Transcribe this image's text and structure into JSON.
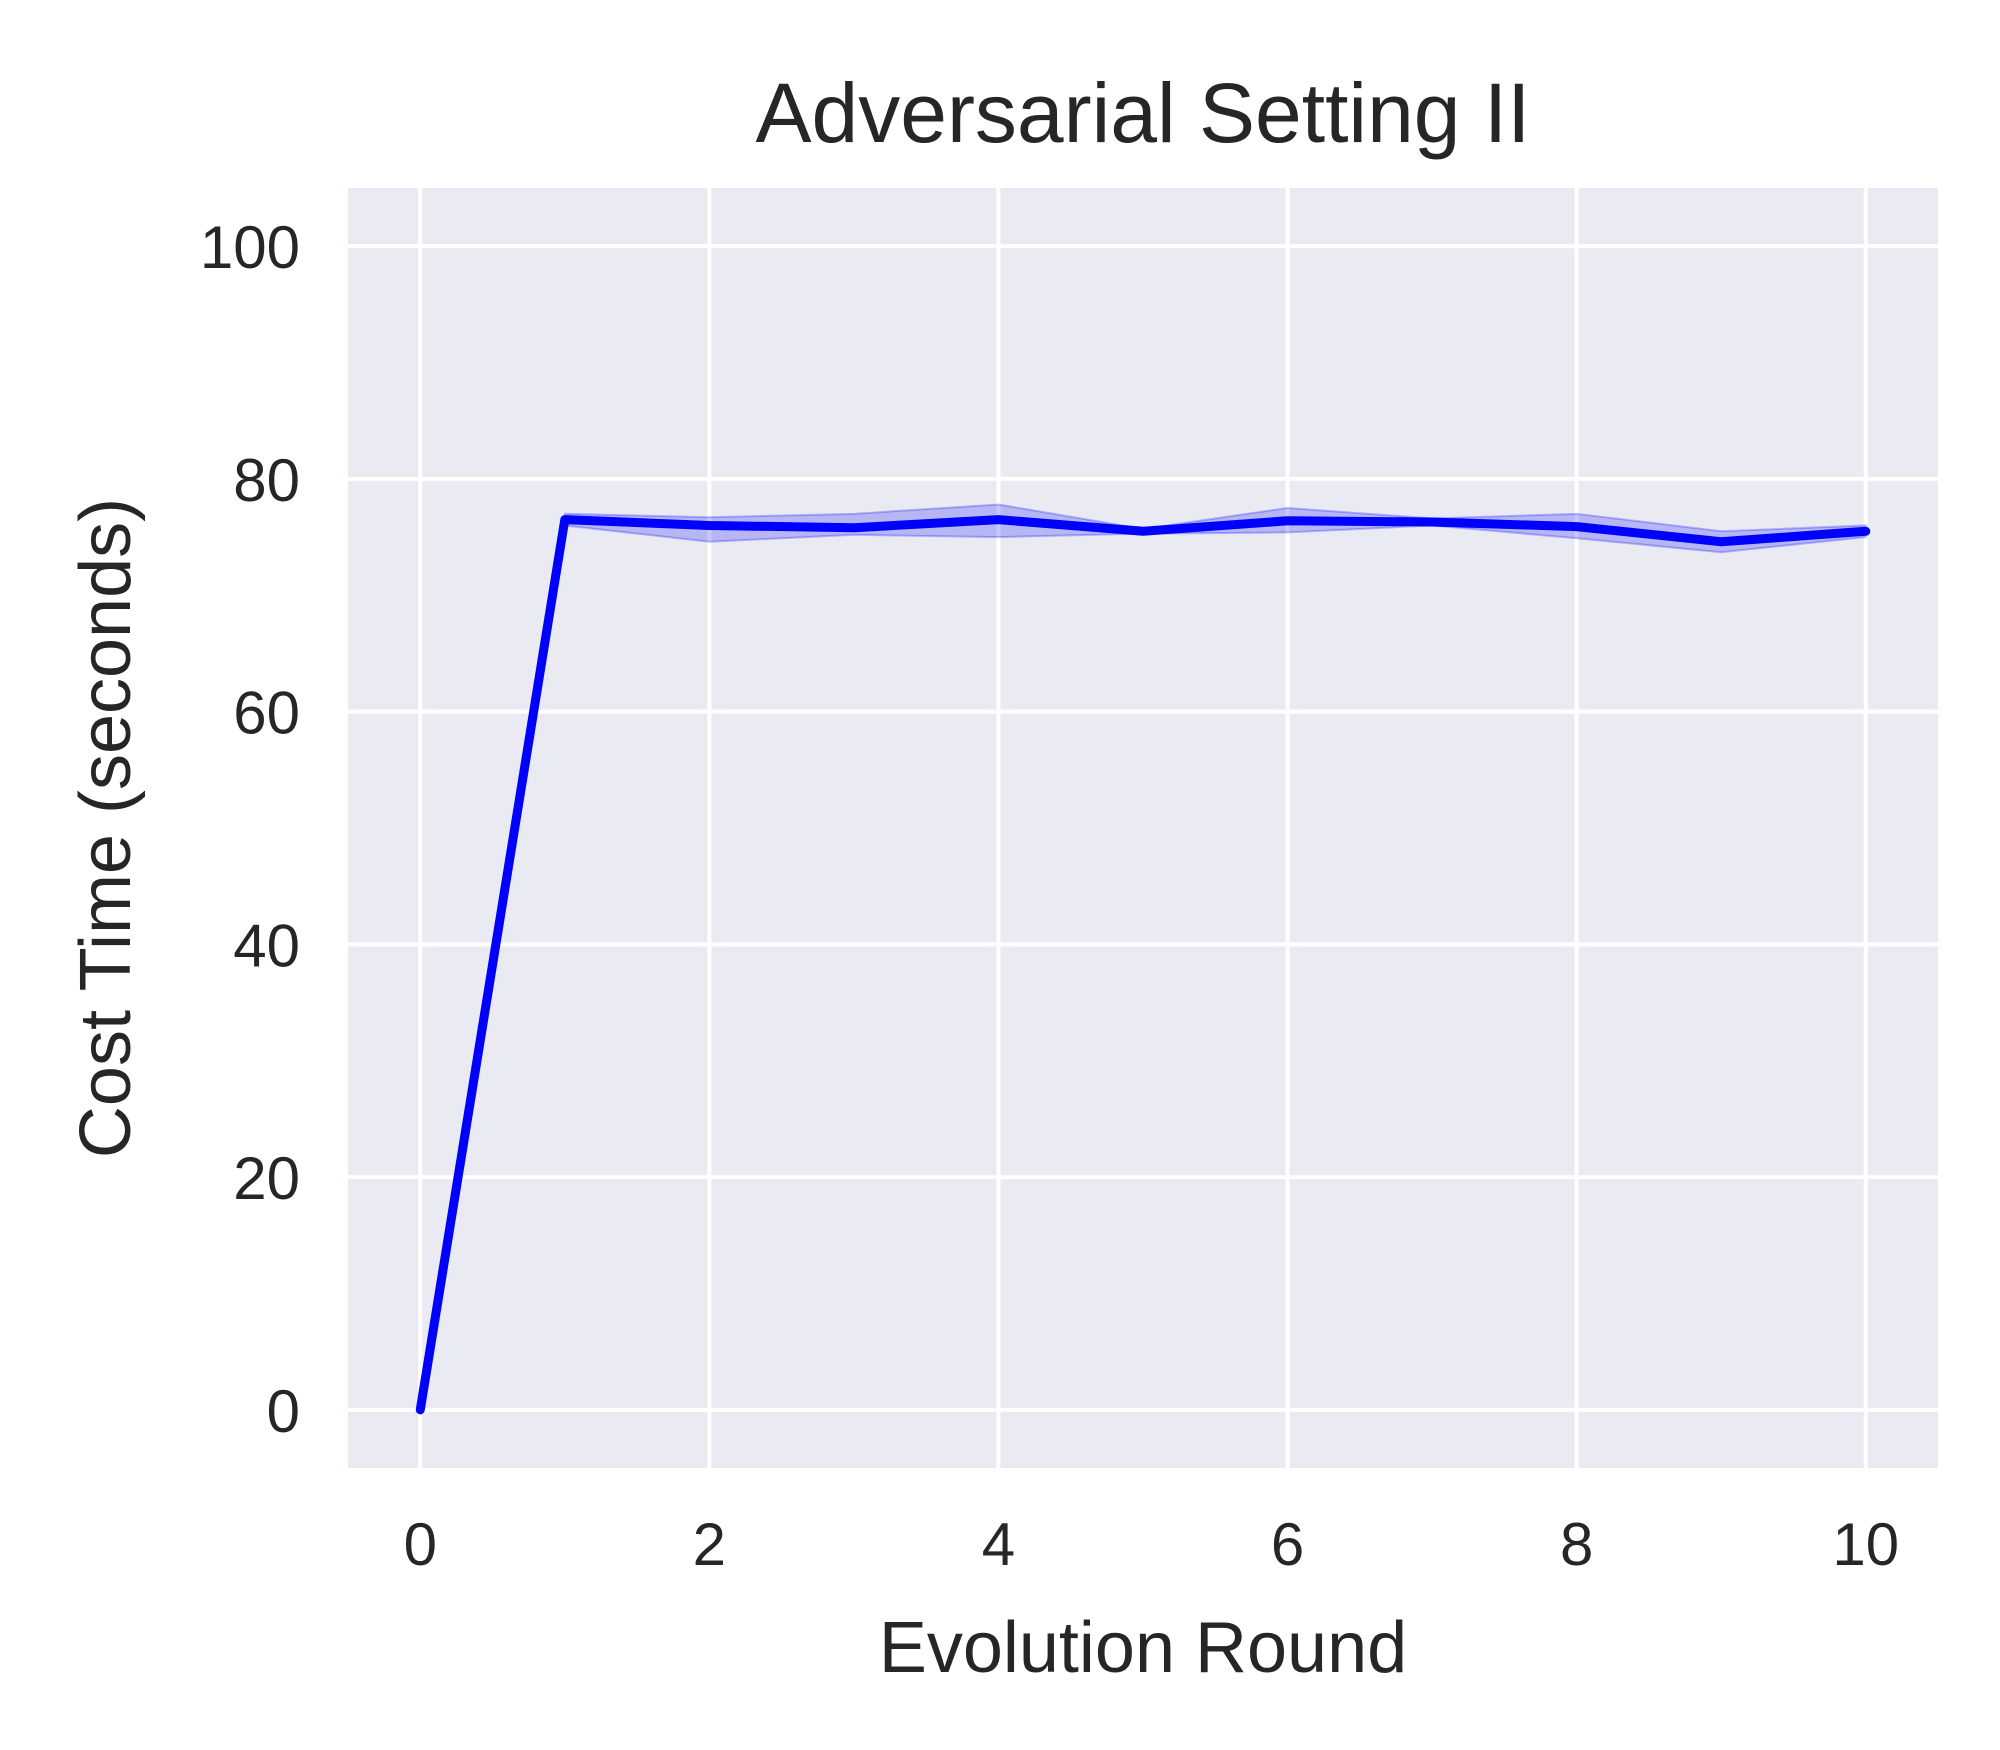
{
  "chart_data": {
    "type": "line",
    "title": "Adversarial Setting II",
    "xlabel": "Evolution Round",
    "ylabel": "Cost Time (seconds)",
    "xlim": [
      -0.5,
      10.5
    ],
    "ylim": [
      -5,
      105
    ],
    "xticks": [
      0,
      2,
      4,
      6,
      8,
      10
    ],
    "yticks": [
      0,
      20,
      40,
      60,
      80,
      100
    ],
    "grid": true,
    "background_color": "#EAEAF2",
    "series": [
      {
        "color": "#0000FF",
        "x": [
          0,
          1,
          2,
          3,
          4,
          5,
          6,
          7,
          8,
          9,
          10
        ],
        "y": [
          0,
          76.5,
          76.0,
          75.8,
          76.5,
          75.5,
          76.4,
          76.3,
          75.9,
          74.6,
          75.5
        ],
        "band_lower": [
          0,
          76.0,
          74.6,
          75.2,
          75.0,
          75.3,
          75.4,
          76.0,
          74.9,
          73.7,
          75.0
        ],
        "band_upper": [
          0,
          77.0,
          76.7,
          77.0,
          77.8,
          75.7,
          77.5,
          76.6,
          77.0,
          75.5,
          76.0
        ]
      }
    ]
  }
}
